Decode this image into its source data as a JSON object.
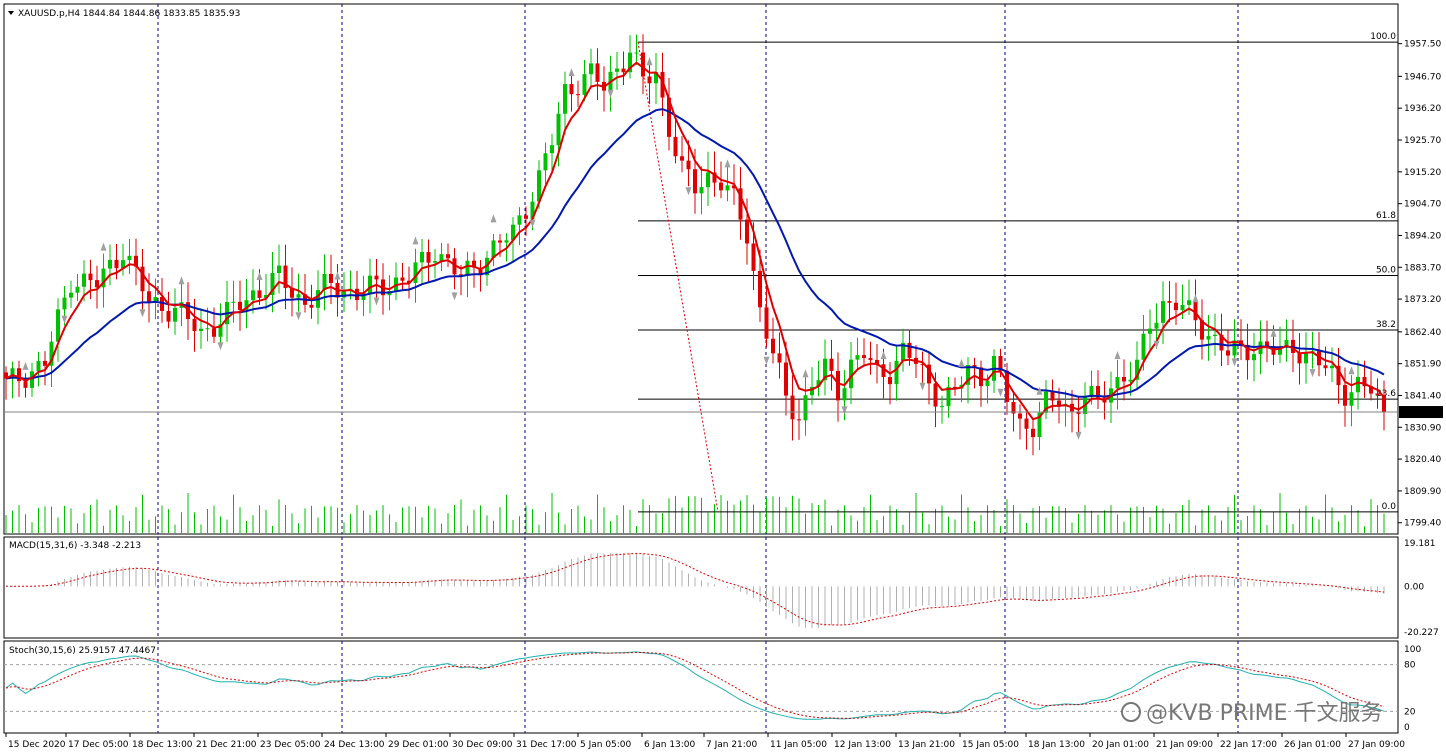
{
  "window": {
    "symbol_header": "XAUUSD.p,H4  1844.84 1844.86 1833.85 1835.93",
    "macd_header": "MACD(15,31,6) -3.348 -2.213",
    "stoch_header": "Stoch(30,15,6) 25.9157 47.4467",
    "watermark": "@KVB PRIME 千文服务"
  },
  "colors": {
    "bull": "#00c000",
    "bear": "#e00000",
    "ma_fast": "#dd0000",
    "ma_slow": "#0018b0",
    "grid_v": "#000080",
    "fib": "#000000",
    "stoch_main": "#20b0b0",
    "stoch_signal": "#dd0000",
    "volume": "#00c000",
    "macd_hist": "#b0b0b0",
    "fractal": "#a0a0a0"
  },
  "price_axis": [
    "1957.50",
    "1946.70",
    "1936.20",
    "1925.70",
    "1915.20",
    "1904.70",
    "1894.20",
    "1883.70",
    "1873.20",
    "1862.40",
    "1851.90",
    "1841.40",
    "1830.90",
    "1820.40",
    "1809.90",
    "1799.40"
  ],
  "current_price": "1835.93",
  "macd_axis": [
    "19.181",
    "0.00",
    "-20.227"
  ],
  "stoch_axis": [
    "100",
    "80",
    "20",
    "0"
  ],
  "fib_labels": [
    "100.0",
    "61.8",
    "50.0",
    "38.2",
    "23.6",
    "0.0"
  ],
  "time_axis": [
    "15 Dec 2020",
    "17 Dec 05:00",
    "18 Dec 13:00",
    "21 Dec 21:00",
    "23 Dec 05:00",
    "24 Dec 13:00",
    "29 Dec 01:00",
    "30 Dec 09:00",
    "31 Dec 17:00",
    "5 Jan 05:00",
    "6 Jan 13:00",
    "7 Jan 21:00",
    "11 Jan 05:00",
    "12 Jan 13:00",
    "13 Jan 21:00",
    "15 Jan 05:00",
    "18 Jan 13:00",
    "20 Jan 01:00",
    "21 Jan 09:00",
    "22 Jan 17:00",
    "26 Jan 01:00",
    "27 Jan 09:00"
  ],
  "chart_data": {
    "type": "candlestick",
    "symbol": "XAUUSD.p",
    "timeframe": "H4",
    "last_ohlc": {
      "open": 1844.84,
      "high": 1844.86,
      "low": 1833.85,
      "close": 1835.93
    },
    "ylim": [
      1797,
      1962
    ],
    "fib_levels": [
      {
        "label": "100.0",
        "price": 1958.0
      },
      {
        "label": "61.8",
        "price": 1899.0
      },
      {
        "label": "50.0",
        "price": 1881.0
      },
      {
        "label": "38.2",
        "price": 1863.0
      },
      {
        "label": "23.6",
        "price": 1840.2
      },
      {
        "label": "0.0",
        "price": 1803.0
      }
    ],
    "close_path": [
      [
        0,
        1845
      ],
      [
        6,
        1852
      ],
      [
        10,
        1880
      ],
      [
        14,
        1878
      ],
      [
        18,
        1890
      ],
      [
        22,
        1872
      ],
      [
        26,
        1870
      ],
      [
        30,
        1862
      ],
      [
        34,
        1868
      ],
      [
        38,
        1875
      ],
      [
        42,
        1880
      ],
      [
        46,
        1872
      ],
      [
        50,
        1878
      ],
      [
        54,
        1875
      ],
      [
        58,
        1878
      ],
      [
        62,
        1880
      ],
      [
        66,
        1890
      ],
      [
        70,
        1880
      ],
      [
        74,
        1888
      ],
      [
        78,
        1895
      ],
      [
        82,
        1913
      ],
      [
        84,
        1925
      ],
      [
        86,
        1942
      ],
      [
        88,
        1945
      ],
      [
        90,
        1947
      ],
      [
        92,
        1943
      ],
      [
        94,
        1950
      ],
      [
        96,
        1955
      ],
      [
        98,
        1945
      ],
      [
        100,
        1948
      ],
      [
        102,
        1930
      ],
      [
        104,
        1915
      ],
      [
        106,
        1910
      ],
      [
        108,
        1914
      ],
      [
        110,
        1912
      ],
      [
        112,
        1905
      ],
      [
        114,
        1895
      ],
      [
        116,
        1870
      ],
      [
        118,
        1855
      ],
      [
        120,
        1840
      ],
      [
        122,
        1835
      ],
      [
        124,
        1845
      ],
      [
        126,
        1850
      ],
      [
        128,
        1843
      ],
      [
        130,
        1852
      ],
      [
        132,
        1855
      ],
      [
        134,
        1848
      ],
      [
        136,
        1850
      ],
      [
        138,
        1856
      ],
      [
        140,
        1852
      ],
      [
        142,
        1845
      ],
      [
        144,
        1840
      ],
      [
        146,
        1842
      ],
      [
        148,
        1850
      ],
      [
        150,
        1848
      ],
      [
        152,
        1852
      ],
      [
        154,
        1840
      ],
      [
        156,
        1832
      ],
      [
        158,
        1832
      ],
      [
        160,
        1838
      ],
      [
        162,
        1840
      ],
      [
        164,
        1836
      ],
      [
        166,
        1842
      ],
      [
        168,
        1838
      ],
      [
        170,
        1845
      ],
      [
        172,
        1848
      ],
      [
        174,
        1850
      ],
      [
        176,
        1865
      ],
      [
        178,
        1872
      ],
      [
        180,
        1872
      ],
      [
        182,
        1868
      ],
      [
        184,
        1864
      ],
      [
        186,
        1860
      ],
      [
        188,
        1855
      ],
      [
        190,
        1856
      ],
      [
        192,
        1858
      ],
      [
        194,
        1857
      ],
      [
        196,
        1855
      ],
      [
        198,
        1858
      ],
      [
        200,
        1855
      ],
      [
        202,
        1852
      ],
      [
        204,
        1848
      ],
      [
        206,
        1843
      ],
      [
        208,
        1844
      ],
      [
        210,
        1843
      ],
      [
        212,
        1836
      ]
    ]
  }
}
